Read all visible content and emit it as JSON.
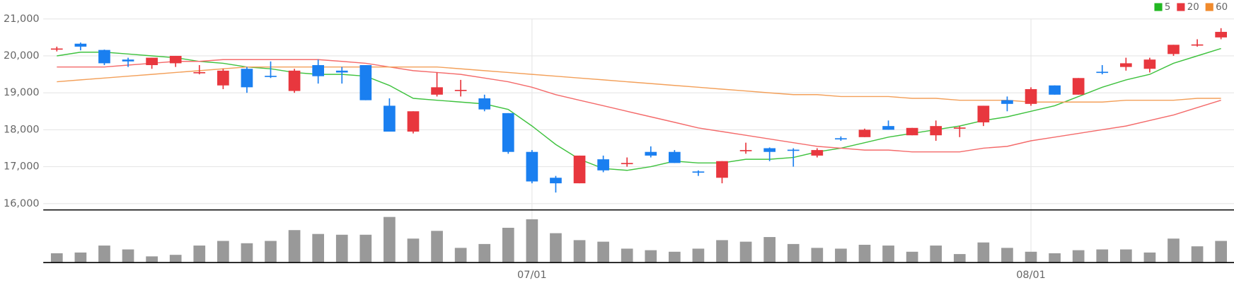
{
  "chart_data": {
    "type": "candlestick",
    "categories": [
      null,
      null,
      null,
      null,
      null,
      null,
      null,
      null,
      null,
      null,
      null,
      null,
      null,
      null,
      null,
      null,
      null,
      null,
      null,
      null,
      "07/01",
      null,
      null,
      null,
      null,
      null,
      null,
      null,
      null,
      null,
      null,
      null,
      null,
      null,
      null,
      null,
      null,
      null,
      null,
      null,
      null,
      "08/01",
      null,
      null,
      null,
      null,
      null,
      null,
      null,
      null
    ],
    "open": [
      20180,
      20330,
      20160,
      19900,
      19750,
      19800,
      19540,
      19200,
      19650,
      19460,
      19050,
      19750,
      19600,
      19750,
      18650,
      17950,
      18950,
      19050,
      18850,
      18450,
      17400,
      16700,
      16550,
      17200,
      17080,
      17400,
      17400,
      16870,
      16700,
      17430,
      17500,
      17460,
      17300,
      17770,
      17800,
      18100,
      17850,
      17850,
      18040,
      18200,
      18800,
      18700,
      19200,
      18950,
      19570,
      19700,
      19650,
      20050,
      20290,
      20500
    ],
    "high": [
      20250,
      20360,
      20170,
      19950,
      19950,
      20000,
      19750,
      19650,
      19700,
      19850,
      19650,
      19900,
      19700,
      19750,
      18850,
      18500,
      19550,
      19350,
      18950,
      18450,
      17450,
      16750,
      17300,
      17300,
      17250,
      17550,
      17450,
      16900,
      17150,
      17650,
      17520,
      17500,
      17500,
      17820,
      18030,
      18250,
      18050,
      18250,
      18100,
      18650,
      18900,
      19150,
      19200,
      19400,
      19750,
      19950,
      19950,
      20300,
      20450,
      20750
    ],
    "low": [
      20120,
      20150,
      19750,
      19700,
      19650,
      19700,
      19500,
      19100,
      19000,
      19400,
      19000,
      19250,
      19250,
      18800,
      17950,
      17900,
      18900,
      18900,
      18500,
      17350,
      16550,
      16300,
      16550,
      16850,
      17000,
      17250,
      17100,
      16750,
      16550,
      17350,
      17150,
      17000,
      17250,
      17700,
      17800,
      18000,
      17850,
      17700,
      17800,
      18100,
      18500,
      18650,
      18950,
      18950,
      19500,
      19600,
      19550,
      20000,
      20250,
      20450
    ],
    "close": [
      20200,
      20250,
      19800,
      19850,
      19950,
      20000,
      19560,
      19600,
      19150,
      19440,
      19600,
      19450,
      19550,
      18800,
      17950,
      18500,
      19150,
      19080,
      18550,
      17400,
      16600,
      16550,
      17300,
      16900,
      17100,
      17300,
      17100,
      16850,
      17150,
      17450,
      17400,
      17440,
      17450,
      17750,
      18000,
      18000,
      18050,
      18100,
      18060,
      18650,
      18700,
      19100,
      18950,
      19400,
      19550,
      19800,
      19900,
      20300,
      20310,
      20650
    ],
    "up_color": "#e8373e",
    "down_color": "#1a7ff0",
    "ylim": [
      15830,
      21300
    ],
    "yticks": [
      {
        "value": 16000,
        "label": "16,000"
      },
      {
        "value": 17000,
        "label": "17,000"
      },
      {
        "value": 18000,
        "label": "18,000"
      },
      {
        "value": 19000,
        "label": "19,000"
      },
      {
        "value": 20000,
        "label": "20,000"
      },
      {
        "value": 21000,
        "label": "21,000"
      }
    ],
    "grid": true,
    "legend": "top-right",
    "moving_averages": [
      {
        "name": "5",
        "color": "#3fc23f",
        "values": [
          20000,
          20100,
          20100,
          20050,
          20000,
          19950,
          19850,
          19800,
          19700,
          19650,
          19550,
          19500,
          19500,
          19450,
          19200,
          18850,
          18800,
          18750,
          18700,
          18550,
          18100,
          17600,
          17200,
          16950,
          16900,
          17000,
          17150,
          17100,
          17100,
          17200,
          17200,
          17250,
          17400,
          17500,
          17650,
          17800,
          17900,
          18000,
          18100,
          18250,
          18350,
          18500,
          18650,
          18900,
          19150,
          19350,
          19500,
          19800,
          20000,
          20200
        ]
      },
      {
        "name": "20",
        "color": "#f46b6b",
        "values": [
          19700,
          19700,
          19700,
          19750,
          19800,
          19850,
          19850,
          19900,
          19900,
          19900,
          19900,
          19900,
          19850,
          19800,
          19700,
          19600,
          19550,
          19500,
          19400,
          19300,
          19150,
          18950,
          18800,
          18650,
          18500,
          18350,
          18200,
          18050,
          17950,
          17850,
          17750,
          17650,
          17550,
          17500,
          17450,
          17450,
          17400,
          17400,
          17400,
          17500,
          17550,
          17700,
          17800,
          17900,
          18000,
          18100,
          18250,
          18400,
          18600,
          18800
        ]
      },
      {
        "name": "60",
        "color": "#f3a05a",
        "values": [
          19300,
          19350,
          19400,
          19450,
          19500,
          19550,
          19600,
          19650,
          19700,
          19700,
          19700,
          19700,
          19700,
          19700,
          19700,
          19700,
          19700,
          19650,
          19600,
          19550,
          19500,
          19450,
          19400,
          19350,
          19300,
          19250,
          19200,
          19150,
          19100,
          19050,
          19000,
          18950,
          18950,
          18900,
          18900,
          18900,
          18850,
          18850,
          18800,
          18800,
          18800,
          18750,
          18750,
          18750,
          18750,
          18800,
          18800,
          18800,
          18850,
          18850
        ]
      }
    ],
    "legend_colors": [
      "#22b822",
      "#e8373e",
      "#f08a2c"
    ],
    "volume": {
      "color": "#999999",
      "ylim": [
        0,
        60
      ],
      "values": [
        12,
        13,
        22,
        17,
        8,
        10,
        22,
        28,
        25,
        28,
        42,
        37,
        36,
        36,
        59,
        31,
        41,
        19,
        24,
        45,
        56,
        38,
        29,
        27,
        18,
        16,
        14,
        18,
        29,
        27,
        33,
        24,
        19,
        18,
        23,
        22,
        14,
        22,
        11,
        26,
        19,
        14,
        12,
        16,
        17,
        17,
        13,
        31,
        21,
        28
      ]
    }
  }
}
